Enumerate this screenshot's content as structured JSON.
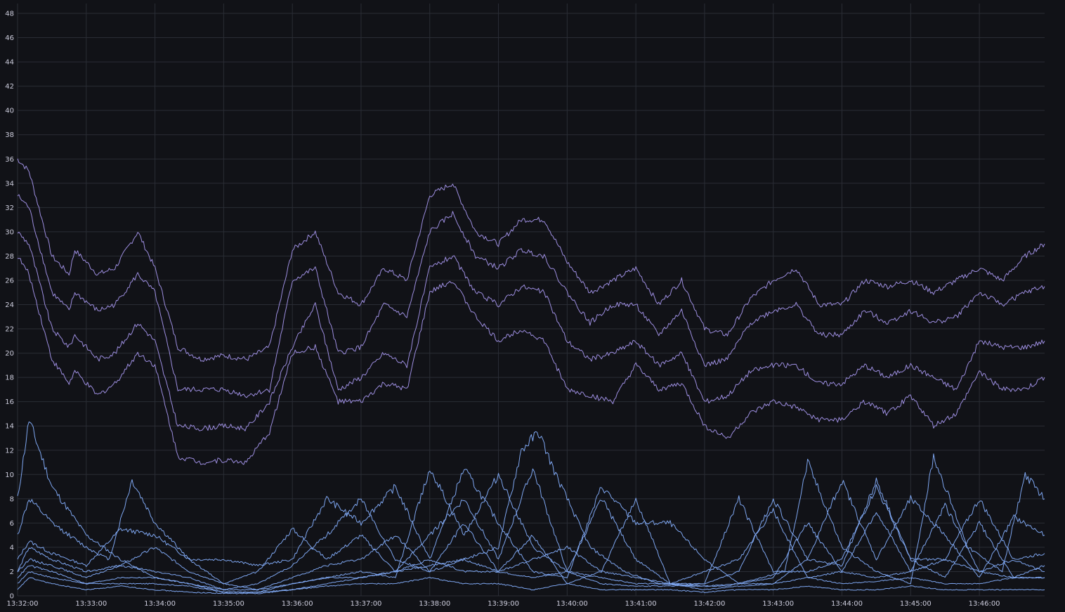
{
  "chart_data": {
    "type": "line",
    "title": "",
    "xlabel": "",
    "ylabel": "",
    "ylim": [
      0,
      48
    ],
    "xlim": [
      "13:32:00",
      "13:46:57"
    ],
    "yticks": [
      0,
      2,
      4,
      6,
      8,
      10,
      12,
      14,
      16,
      18,
      20,
      22,
      24,
      26,
      28,
      30,
      32,
      34,
      36,
      38,
      40,
      42,
      44,
      46,
      48
    ],
    "xticks": [
      "13:32:00",
      "13:33:00",
      "13:34:00",
      "13:35:00",
      "13:36:00",
      "13:37:00",
      "13:38:00",
      "13:39:00",
      "13:40:00",
      "13:41:00",
      "13:42:00",
      "13:43:00",
      "13:44:00",
      "13:45:00",
      "13:46:00"
    ],
    "grid": true,
    "legend": "none",
    "colors": {
      "upper": "#9d8ee0",
      "lower": "#7ea6f0",
      "grid": "#2a2d35",
      "text": "#ccccdc",
      "background": "#111217"
    },
    "series": [
      {
        "group": "upper",
        "x": [
          "13:32:00",
          "13:32:10",
          "13:32:30",
          "13:32:45",
          "13:32:50",
          "13:33:10",
          "13:33:25",
          "13:33:45",
          "13:34:00",
          "13:34:20",
          "13:34:40",
          "13:35:00",
          "13:35:20",
          "13:35:40",
          "13:36:00",
          "13:36:20",
          "13:36:40",
          "13:37:00",
          "13:37:20",
          "13:37:40",
          "13:38:00",
          "13:38:20",
          "13:38:40",
          "13:39:00",
          "13:39:20",
          "13:39:40",
          "13:40:00",
          "13:40:20",
          "13:40:40",
          "13:41:00",
          "13:41:20",
          "13:41:40",
          "13:42:00",
          "13:42:20",
          "13:42:40",
          "13:43:00",
          "13:43:20",
          "13:43:40",
          "13:44:00",
          "13:44:20",
          "13:44:40",
          "13:45:00",
          "13:45:20",
          "13:45:40",
          "13:46:00",
          "13:46:20",
          "13:46:40",
          "13:46:57"
        ],
        "y": [
          36,
          35,
          28,
          26.5,
          28.5,
          26.5,
          27,
          30,
          27,
          20.5,
          19.5,
          19.8,
          19.5,
          20.5,
          28.5,
          30,
          25,
          24,
          27,
          26,
          33,
          34,
          30,
          29,
          31,
          31,
          27.5,
          25,
          26,
          27,
          24,
          26,
          22,
          21.5,
          24.5,
          26,
          27,
          24,
          24,
          26,
          25.5,
          26,
          25,
          26,
          27,
          26,
          28,
          29
        ]
      },
      {
        "group": "upper",
        "x": [
          "13:32:00",
          "13:32:10",
          "13:32:30",
          "13:32:45",
          "13:32:50",
          "13:33:10",
          "13:33:25",
          "13:33:45",
          "13:34:00",
          "13:34:20",
          "13:34:40",
          "13:35:00",
          "13:35:20",
          "13:35:40",
          "13:36:00",
          "13:36:20",
          "13:36:40",
          "13:37:00",
          "13:37:20",
          "13:37:40",
          "13:38:00",
          "13:38:20",
          "13:38:40",
          "13:39:00",
          "13:39:20",
          "13:39:40",
          "13:40:00",
          "13:40:20",
          "13:40:40",
          "13:41:00",
          "13:41:20",
          "13:41:40",
          "13:42:00",
          "13:42:20",
          "13:42:40",
          "13:43:00",
          "13:43:20",
          "13:43:40",
          "13:44:00",
          "13:44:20",
          "13:44:40",
          "13:45:00",
          "13:45:20",
          "13:45:40",
          "13:46:00",
          "13:46:20",
          "13:46:40",
          "13:46:57"
        ],
        "y": [
          33,
          32,
          25,
          23.5,
          25,
          23.5,
          24,
          26.5,
          25,
          17,
          17,
          17,
          16.5,
          17,
          26,
          27,
          20,
          20.5,
          24,
          23,
          30,
          31.5,
          28,
          27,
          28.5,
          28,
          25,
          22.5,
          24,
          24,
          21.5,
          23.5,
          19,
          19.5,
          22.5,
          23.5,
          24,
          21.5,
          21.5,
          23.5,
          22.5,
          23.5,
          22.5,
          23,
          25,
          24,
          25,
          25.5
        ]
      },
      {
        "group": "upper",
        "x": [
          "13:32:00",
          "13:32:10",
          "13:32:30",
          "13:32:45",
          "13:32:50",
          "13:33:10",
          "13:33:25",
          "13:33:45",
          "13:34:00",
          "13:34:20",
          "13:34:40",
          "13:35:00",
          "13:35:20",
          "13:35:40",
          "13:36:00",
          "13:36:20",
          "13:36:40",
          "13:37:00",
          "13:37:20",
          "13:37:40",
          "13:38:00",
          "13:38:20",
          "13:38:40",
          "13:39:00",
          "13:39:20",
          "13:39:40",
          "13:40:00",
          "13:40:20",
          "13:40:40",
          "13:41:00",
          "13:41:20",
          "13:41:40",
          "13:42:00",
          "13:42:20",
          "13:42:40",
          "13:43:00",
          "13:43:20",
          "13:43:40",
          "13:44:00",
          "13:44:20",
          "13:44:40",
          "13:45:00",
          "13:45:20",
          "13:45:40",
          "13:46:00",
          "13:46:20",
          "13:46:40",
          "13:46:57"
        ],
        "y": [
          30,
          29,
          22,
          20.5,
          21.5,
          19.5,
          20,
          22.5,
          21,
          14,
          13.8,
          14,
          13.8,
          16,
          20.5,
          24,
          17,
          18,
          20,
          19,
          27,
          28,
          25,
          24,
          25.5,
          25,
          21,
          19.5,
          20,
          21,
          19,
          20,
          16,
          16.5,
          18.5,
          19,
          19,
          17.5,
          17.5,
          19,
          18,
          19,
          18,
          17,
          21,
          20.5,
          20.5,
          21
        ]
      },
      {
        "group": "upper",
        "x": [
          "13:32:00",
          "13:32:10",
          "13:32:30",
          "13:32:45",
          "13:32:50",
          "13:33:10",
          "13:33:25",
          "13:33:45",
          "13:34:00",
          "13:34:20",
          "13:34:40",
          "13:35:00",
          "13:35:20",
          "13:35:40",
          "13:36:00",
          "13:36:20",
          "13:36:40",
          "13:37:00",
          "13:37:20",
          "13:37:40",
          "13:38:00",
          "13:38:20",
          "13:38:40",
          "13:39:00",
          "13:39:20",
          "13:39:40",
          "13:40:00",
          "13:40:20",
          "13:40:40",
          "13:41:00",
          "13:41:20",
          "13:41:40",
          "13:42:00",
          "13:42:20",
          "13:42:40",
          "13:43:00",
          "13:43:20",
          "13:43:40",
          "13:44:00",
          "13:44:20",
          "13:44:40",
          "13:45:00",
          "13:45:20",
          "13:45:40",
          "13:46:00",
          "13:46:20",
          "13:46:40",
          "13:46:57"
        ],
        "y": [
          28,
          26.5,
          19.5,
          17.5,
          18.5,
          16.5,
          17.5,
          20,
          19,
          11.5,
          11,
          11.2,
          11,
          13.5,
          20,
          20.5,
          16,
          16,
          17.5,
          17,
          25,
          26,
          23,
          21,
          22,
          21,
          17,
          16.5,
          16,
          19,
          17,
          17.5,
          14,
          13,
          15,
          16,
          15.5,
          14.5,
          14.5,
          16,
          15,
          16.5,
          14,
          15,
          18.5,
          17,
          17,
          18
        ]
      },
      {
        "group": "lower",
        "x": [
          "13:32:00",
          "13:32:10",
          "13:32:30",
          "13:33:00",
          "13:33:30",
          "13:34:00",
          "13:34:30",
          "13:35:00",
          "13:35:30",
          "13:36:00",
          "13:36:30",
          "13:37:00",
          "13:37:30",
          "13:38:00",
          "13:38:30",
          "13:39:00",
          "13:39:20",
          "13:39:35",
          "13:39:50",
          "13:40:20",
          "13:40:50",
          "13:41:20",
          "13:41:50",
          "13:42:20",
          "13:42:50",
          "13:43:10",
          "13:43:30",
          "13:44:00",
          "13:44:30",
          "13:45:00",
          "13:45:20",
          "13:45:50",
          "13:46:20",
          "13:46:40",
          "13:46:57"
        ],
        "y": [
          8,
          14.5,
          9,
          5,
          3,
          1.5,
          1,
          0.3,
          0.3,
          0.5,
          1,
          1.5,
          2,
          2.5,
          3,
          4,
          12,
          13.5,
          10,
          4,
          2,
          1,
          0.8,
          0.8,
          1.5,
          2,
          11,
          4,
          2,
          1,
          11.5,
          4,
          2,
          10,
          8
        ]
      },
      {
        "group": "lower",
        "x": [
          "13:32:00",
          "13:32:10",
          "13:32:30",
          "13:33:00",
          "13:33:20",
          "13:33:40",
          "13:34:00",
          "13:34:30",
          "13:35:00",
          "13:35:30",
          "13:36:00",
          "13:36:30",
          "13:37:00",
          "13:37:30",
          "13:38:00",
          "13:38:30",
          "13:39:00",
          "13:39:30",
          "13:40:00",
          "13:40:30",
          "13:41:00",
          "13:41:30",
          "13:42:00",
          "13:42:30",
          "13:43:00",
          "13:43:30",
          "13:44:00",
          "13:44:30",
          "13:45:00",
          "13:45:30",
          "13:46:00",
          "13:46:30",
          "13:46:57"
        ],
        "y": [
          5,
          8,
          6,
          4,
          3,
          9.5,
          6,
          3,
          1,
          0.5,
          1,
          1.5,
          2,
          1.5,
          10.5,
          5,
          10,
          4,
          2,
          1,
          0.8,
          0.8,
          1,
          2,
          8,
          3,
          2.5,
          9.5,
          3,
          1.5,
          6,
          1.5,
          2.5
        ]
      },
      {
        "group": "lower",
        "x": [
          "13:32:00",
          "13:32:10",
          "13:32:30",
          "13:33:00",
          "13:33:30",
          "13:34:00",
          "13:34:30",
          "13:35:00",
          "13:35:30",
          "13:36:00",
          "13:36:30",
          "13:37:00",
          "13:37:30",
          "13:38:00",
          "13:38:30",
          "13:39:00",
          "13:39:30",
          "13:40:00",
          "13:40:30",
          "13:41:00",
          "13:41:30",
          "13:42:00",
          "13:42:30",
          "13:43:00",
          "13:43:30",
          "13:44:00",
          "13:44:30",
          "13:45:00",
          "13:45:30",
          "13:46:00",
          "13:46:30",
          "13:46:57"
        ],
        "y": [
          3,
          4.5,
          3.5,
          2.5,
          5.5,
          5,
          3,
          3,
          2.5,
          3,
          8,
          6,
          9,
          3,
          10.5,
          6,
          2,
          1.5,
          9,
          6,
          6,
          3,
          1,
          1,
          3,
          9.5,
          3,
          8,
          5,
          1.5,
          6.5,
          5
        ]
      },
      {
        "group": "lower",
        "x": [
          "13:32:00",
          "13:32:10",
          "13:32:30",
          "13:33:00",
          "13:33:30",
          "13:34:00",
          "13:34:30",
          "13:35:00",
          "13:35:30",
          "13:36:00",
          "13:36:30",
          "13:37:00",
          "13:37:30",
          "13:38:00",
          "13:38:30",
          "13:39:00",
          "13:39:30",
          "13:40:00",
          "13:40:30",
          "13:41:00",
          "13:41:30",
          "13:42:00",
          "13:42:30",
          "13:43:00",
          "13:43:30",
          "13:44:00",
          "13:44:30",
          "13:45:00",
          "13:45:30",
          "13:46:00",
          "13:46:30",
          "13:46:57"
        ],
        "y": [
          2,
          4,
          3,
          2,
          2.5,
          4,
          2,
          1,
          2,
          5.5,
          3,
          5,
          2,
          5,
          8,
          3,
          10.5,
          2,
          8,
          3,
          1,
          1,
          8,
          2,
          2,
          3,
          9,
          3,
          3,
          8,
          3,
          3.5
        ]
      },
      {
        "group": "lower",
        "x": [
          "13:32:00",
          "13:32:10",
          "13:32:30",
          "13:33:00",
          "13:33:30",
          "13:34:00",
          "13:34:30",
          "13:35:00",
          "13:35:30",
          "13:36:00",
          "13:36:30",
          "13:37:00",
          "13:37:30",
          "13:38:00",
          "13:38:30",
          "13:39:00",
          "13:39:30",
          "13:40:00",
          "13:40:30",
          "13:41:00",
          "13:41:30",
          "13:42:00",
          "13:42:30",
          "13:43:00",
          "13:43:30",
          "13:44:00",
          "13:44:30",
          "13:45:00",
          "13:45:30",
          "13:46:00",
          "13:46:30",
          "13:46:57"
        ],
        "y": [
          2,
          3,
          2.5,
          1.5,
          2.5,
          2,
          1.5,
          0.5,
          1,
          2.5,
          5,
          8,
          3,
          2,
          6,
          2,
          5,
          1,
          2,
          8,
          1,
          2,
          3,
          7,
          1.5,
          2,
          7,
          2,
          7.5,
          2,
          3,
          2
        ]
      },
      {
        "group": "lower",
        "x": [
          "13:32:00",
          "13:32:10",
          "13:32:30",
          "13:33:00",
          "13:33:30",
          "13:34:00",
          "13:34:30",
          "13:35:00",
          "13:35:30",
          "13:36:00",
          "13:36:30",
          "13:37:00",
          "13:37:30",
          "13:38:00",
          "13:38:30",
          "13:39:00",
          "13:39:30",
          "13:40:00",
          "13:40:30",
          "13:41:00",
          "13:41:30",
          "13:42:00",
          "13:42:30",
          "13:43:00",
          "13:43:30",
          "13:44:00",
          "13:44:30",
          "13:45:00",
          "13:45:30",
          "13:46:00",
          "13:46:30",
          "13:46:57"
        ],
        "y": [
          1.5,
          2.5,
          2,
          1,
          1.5,
          1.5,
          1,
          0.5,
          0.5,
          1.5,
          2.5,
          3,
          5,
          2,
          3,
          2,
          3,
          4,
          2,
          1.5,
          1,
          0.8,
          1,
          1.5,
          6,
          2,
          1.5,
          2,
          3,
          2,
          1.5,
          1.5
        ]
      },
      {
        "group": "lower",
        "x": [
          "13:32:00",
          "13:32:10",
          "13:32:30",
          "13:33:00",
          "13:33:30",
          "13:34:00",
          "13:34:30",
          "13:35:00",
          "13:35:30",
          "13:36:00",
          "13:36:30",
          "13:37:00",
          "13:37:30",
          "13:38:00",
          "13:38:30",
          "13:39:00",
          "13:39:30",
          "13:40:00",
          "13:40:30",
          "13:41:00",
          "13:41:30",
          "13:42:00",
          "13:42:30",
          "13:43:00",
          "13:43:30",
          "13:44:00",
          "13:44:30",
          "13:45:00",
          "13:45:30",
          "13:46:00",
          "13:46:30",
          "13:46:57"
        ],
        "y": [
          1,
          2,
          1.5,
          1,
          1,
          1,
          0.8,
          0.3,
          0.3,
          1,
          1.5,
          1.5,
          2,
          3,
          2,
          2,
          1.5,
          2,
          1.5,
          1,
          1,
          0.5,
          0.8,
          1,
          1.5,
          1,
          1.2,
          1.5,
          1,
          1,
          1.5,
          1.5
        ]
      },
      {
        "group": "lower",
        "x": [
          "13:32:00",
          "13:32:10",
          "13:32:30",
          "13:33:00",
          "13:33:30",
          "13:34:00",
          "13:34:30",
          "13:35:00",
          "13:35:30",
          "13:36:00",
          "13:36:30",
          "13:37:00",
          "13:37:30",
          "13:38:00",
          "13:38:30",
          "13:39:00",
          "13:39:30",
          "13:40:00",
          "13:40:30",
          "13:41:00",
          "13:41:30",
          "13:42:00",
          "13:42:30",
          "13:43:00",
          "13:43:30",
          "13:44:00",
          "13:44:30",
          "13:45:00",
          "13:45:30",
          "13:46:00",
          "13:46:30",
          "13:46:57"
        ],
        "y": [
          0.5,
          1.5,
          1,
          0.5,
          0.8,
          0.5,
          0.3,
          0.2,
          0.2,
          0.5,
          0.8,
          1,
          1,
          1.5,
          1,
          1,
          0.5,
          1,
          0.5,
          0.5,
          0.5,
          0.3,
          0.5,
          0.5,
          0.8,
          0.5,
          0.5,
          0.8,
          0.5,
          0.5,
          0.5,
          0.5
        ]
      }
    ]
  }
}
